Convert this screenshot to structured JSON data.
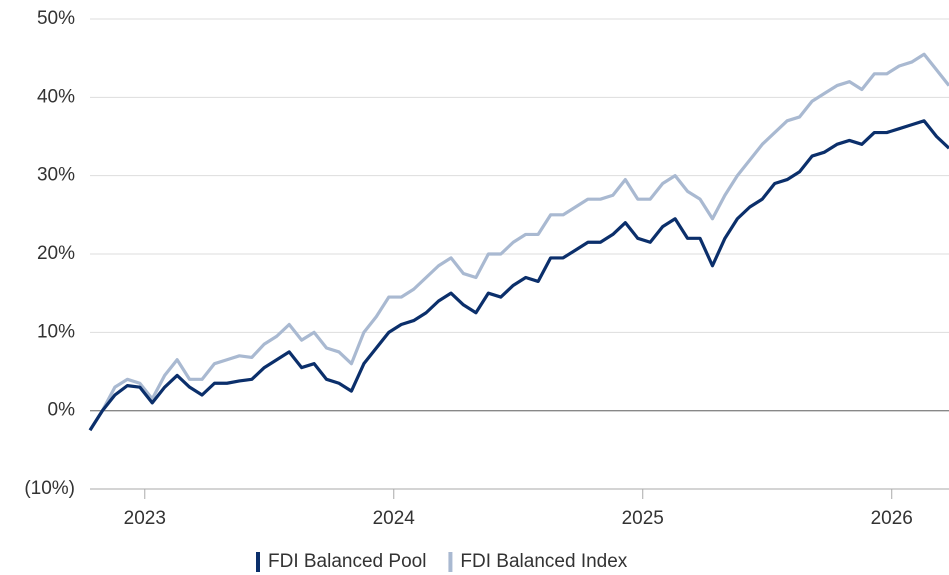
{
  "chart_data": {
    "type": "line",
    "x": [
      2022.78,
      2022.83,
      2022.88,
      2022.93,
      2022.98,
      2023.03,
      2023.08,
      2023.13,
      2023.18,
      2023.23,
      2023.28,
      2023.33,
      2023.38,
      2023.43,
      2023.48,
      2023.53,
      2023.58,
      2023.63,
      2023.68,
      2023.73,
      2023.78,
      2023.83,
      2023.88,
      2023.93,
      2023.98,
      2024.03,
      2024.08,
      2024.13,
      2024.18,
      2024.23,
      2024.28,
      2024.33,
      2024.38,
      2024.43,
      2024.48,
      2024.53,
      2024.58,
      2024.63,
      2024.68,
      2024.73,
      2024.78,
      2024.83,
      2024.88,
      2024.93,
      2024.98,
      2025.03,
      2025.08,
      2025.13,
      2025.18,
      2025.23,
      2025.28,
      2025.33,
      2025.38,
      2025.43,
      2025.48,
      2025.53,
      2025.58,
      2025.63,
      2025.68,
      2025.73,
      2025.78,
      2025.83,
      2025.88,
      2025.93,
      2025.98,
      2026.03,
      2026.08,
      2026.13,
      2026.18,
      2026.23
    ],
    "series": [
      {
        "name": "FDI Balanced Pool",
        "color": "#0b2f6b",
        "values": [
          -2.5,
          0,
          2,
          3.2,
          3,
          1,
          3,
          4.5,
          3,
          2,
          3.5,
          3.5,
          3.8,
          4,
          5.5,
          6.5,
          7.5,
          5.5,
          6,
          4,
          3.5,
          2.5,
          6,
          8,
          10,
          11,
          11.5,
          12.5,
          14,
          15,
          13.5,
          12.5,
          15,
          14.5,
          16,
          17,
          16.5,
          19.5,
          19.5,
          20.5,
          21.5,
          21.5,
          22.5,
          24,
          22,
          21.5,
          23.5,
          24.5,
          22,
          22,
          18.5,
          22,
          24.5,
          26,
          27,
          29,
          29.5,
          30.5,
          32.5,
          33,
          34,
          34.5,
          34,
          35.5,
          35.5,
          36,
          36.5,
          37,
          35,
          33.5
        ]
      },
      {
        "name": "FDI Balanced Index",
        "color": "#a9b9d1",
        "values": [
          -2.5,
          0,
          3,
          4,
          3.5,
          1.5,
          4.5,
          6.5,
          4,
          4,
          6,
          6.5,
          7,
          6.8,
          8.5,
          9.5,
          11,
          9,
          10,
          8,
          7.5,
          6,
          10,
          12,
          14.5,
          14.5,
          15.5,
          17,
          18.5,
          19.5,
          17.5,
          17,
          20,
          20,
          21.5,
          22.5,
          22.5,
          25,
          25,
          26,
          27,
          27,
          27.5,
          29.5,
          27,
          27,
          29,
          30,
          28,
          27,
          24.5,
          27.5,
          30,
          32,
          34,
          35.5,
          37,
          37.5,
          39.5,
          40.5,
          41.5,
          42,
          41,
          43,
          43,
          44,
          44.5,
          45.5,
          43.5,
          41.5
        ]
      }
    ],
    "xlim": [
      2022.78,
      2026.23
    ],
    "xticks": [
      2023,
      2024,
      2025,
      2026
    ],
    "ylim": [
      -10,
      50
    ],
    "yticks": [
      {
        "value": -10,
        "label": "(10%)"
      },
      {
        "value": 0,
        "label": "0%"
      },
      {
        "value": 10,
        "label": "10%"
      },
      {
        "value": 20,
        "label": "20%"
      },
      {
        "value": 30,
        "label": "30%"
      },
      {
        "value": 40,
        "label": "40%"
      },
      {
        "value": 50,
        "label": "50%"
      }
    ],
    "grid": true
  }
}
